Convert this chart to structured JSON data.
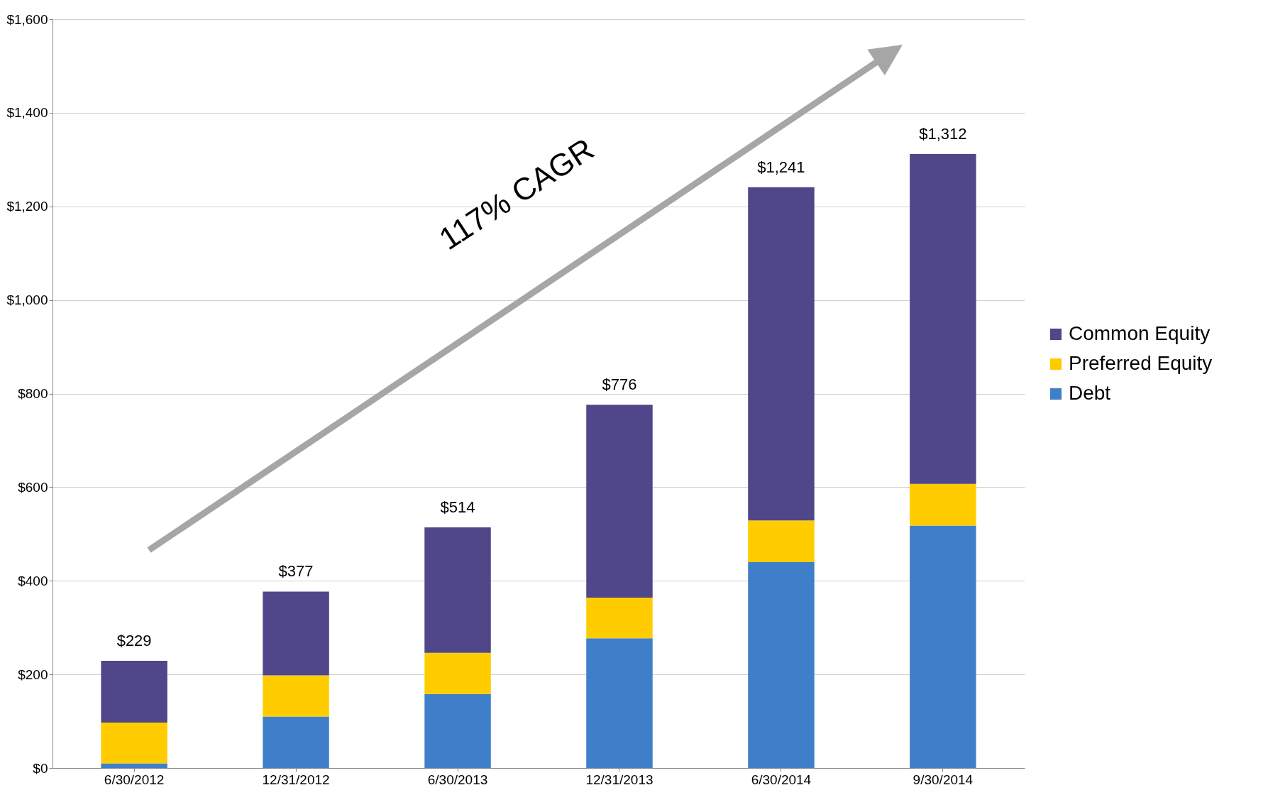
{
  "chart_data": {
    "type": "bar",
    "stacked": true,
    "categories": [
      "6/30/2012",
      "12/31/2012",
      "6/30/2013",
      "12/31/2013",
      "6/30/2014",
      "9/30/2014"
    ],
    "series": [
      {
        "name": "Debt",
        "color": "#3f7fc9",
        "values": [
          10,
          110,
          158,
          277,
          440,
          518
        ]
      },
      {
        "name": "Preferred Equity",
        "color": "#ffcc00",
        "values": [
          87,
          88,
          88,
          87,
          89,
          89
        ]
      },
      {
        "name": "Common Equity",
        "color": "#50468a",
        "values": [
          132,
          179,
          268,
          412,
          712,
          705
        ]
      }
    ],
    "totals": [
      "$229",
      "$377",
      "$514",
      "$776",
      "$1,241",
      "$1,312"
    ],
    "ylim": [
      0,
      1600
    ],
    "yticks": [
      {
        "value": 0,
        "label": "$0"
      },
      {
        "value": 200,
        "label": "$200"
      },
      {
        "value": 400,
        "label": "$400"
      },
      {
        "value": 600,
        "label": "$600"
      },
      {
        "value": 800,
        "label": "$800"
      },
      {
        "value": 1000,
        "label": "$1,000"
      },
      {
        "value": 1200,
        "label": "$1,200"
      },
      {
        "value": 1400,
        "label": "$1,400"
      },
      {
        "value": 1600,
        "label": "$1,600"
      }
    ],
    "annotations": [
      "117% CAGR"
    ],
    "grid": "y",
    "legend": "right"
  }
}
